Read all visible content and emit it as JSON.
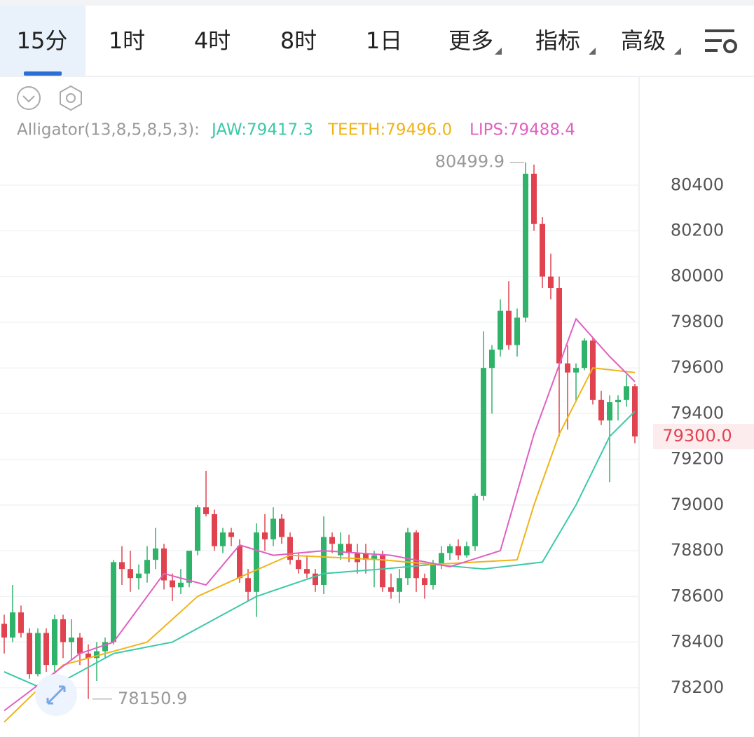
{
  "tabs": [
    "15分",
    "1时",
    "4时",
    "8时",
    "1日",
    "更多",
    "指标",
    "高级"
  ],
  "indicator": {
    "label": "Alligator(13,8,5,8,5,3):",
    "jaw": "JAW:79417.3",
    "teeth": "TEETH:79496.0",
    "lips": "LIPS:79488.4"
  },
  "chart_data": {
    "type": "candlestick",
    "up_color": "#2fb36b",
    "down_color": "#e0434f",
    "grid": true,
    "ylim": [
      78000,
      80870
    ],
    "yticks": [
      78200,
      78400,
      78600,
      78800,
      79000,
      79200,
      79400,
      79600,
      79800,
      80000,
      80200,
      80400
    ],
    "open": [
      78480,
      78420,
      78530,
      78440,
      78260,
      78440,
      78300,
      78500,
      78400,
      78420,
      78350,
      78330,
      78360,
      78400,
      78750,
      78720,
      78680,
      78700,
      78760,
      78810,
      78670,
      78640,
      78660,
      78800,
      78990,
      78960,
      78820,
      78880,
      78820,
      78680,
      78620,
      78880,
      78850,
      78940,
      78860,
      78760,
      78720,
      78700,
      78650,
      78860,
      78780,
      78830,
      78790,
      78790,
      78760,
      78780,
      78640,
      78620,
      78680,
      78880,
      78680,
      78650,
      78740,
      78790,
      78820,
      78780,
      78820,
      79040,
      79600,
      79680,
      79850,
      79700,
      79820,
      80450,
      80230,
      80000,
      79950,
      79620,
      79580,
      79600,
      79720,
      79460,
      79370,
      79450,
      79460,
      79520
    ],
    "high": [
      78520,
      78650,
      78560,
      78460,
      78460,
      78460,
      78520,
      78520,
      78500,
      78440,
      78390,
      78400,
      78420,
      78760,
      78820,
      78800,
      78740,
      78820,
      78900,
      78830,
      78700,
      78720,
      78800,
      79000,
      79150,
      78980,
      78900,
      78900,
      78850,
      78720,
      78920,
      78960,
      78990,
      78960,
      78880,
      78790,
      78780,
      78720,
      78950,
      78880,
      78880,
      78870,
      78830,
      78830,
      78800,
      78800,
      78700,
      78720,
      78900,
      78890,
      78700,
      78760,
      78820,
      78830,
      78850,
      78840,
      79050,
      79760,
      79700,
      79900,
      79980,
      79860,
      80499.9,
      80490,
      80260,
      80100,
      80000,
      79700,
      79620,
      79730,
      79730,
      79500,
      79480,
      79480,
      79570,
      79530
    ],
    "low": [
      78350,
      78400,
      78420,
      78240,
      78250,
      78270,
      78270,
      78330,
      78320,
      78300,
      78150.9,
      78230,
      78330,
      78390,
      78650,
      78620,
      78630,
      78660,
      78720,
      78630,
      78580,
      78610,
      78640,
      78780,
      78950,
      78800,
      78790,
      78820,
      78660,
      78580,
      78510,
      78800,
      78820,
      78830,
      78740,
      78700,
      78680,
      78620,
      78610,
      78790,
      78760,
      78750,
      78700,
      78700,
      78640,
      78620,
      78590,
      78570,
      78650,
      78620,
      78590,
      78630,
      78720,
      78760,
      78760,
      78770,
      78800,
      79020,
      79400,
      79650,
      79680,
      79650,
      79800,
      80200,
      79950,
      79900,
      79300,
      79330,
      79450,
      79590,
      79440,
      79350,
      79100,
      79370,
      79430,
      79270
    ],
    "close": [
      78420,
      78530,
      78440,
      78260,
      78440,
      78300,
      78500,
      78400,
      78420,
      78350,
      78330,
      78360,
      78400,
      78750,
      78720,
      78680,
      78700,
      78760,
      78810,
      78670,
      78640,
      78660,
      78800,
      78990,
      78960,
      78820,
      78880,
      78860,
      78680,
      78620,
      78880,
      78850,
      78940,
      78860,
      78760,
      78720,
      78700,
      78650,
      78860,
      78830,
      78830,
      78790,
      78750,
      78760,
      78780,
      78640,
      78620,
      78680,
      78880,
      78680,
      78650,
      78740,
      78790,
      78820,
      78780,
      78820,
      79040,
      79600,
      79680,
      79850,
      79700,
      79820,
      80450,
      80230,
      80000,
      79950,
      79620,
      79580,
      79600,
      79720,
      79460,
      79370,
      79450,
      79460,
      79520,
      79300
    ],
    "series": [
      {
        "color": "#3cc9a8",
        "x": [
          0,
          5,
          13,
          20,
          25,
          30,
          38,
          45,
          51,
          57,
          64,
          68,
          72,
          75
        ],
        "values": [
          78270,
          78190,
          78350,
          78400,
          78500,
          78600,
          78700,
          78720,
          78740,
          78720,
          78750,
          79000,
          79300,
          79410
        ]
      },
      {
        "color": "#f0b419",
        "x": [
          0,
          7,
          17,
          23,
          29,
          34,
          45,
          51,
          61,
          63,
          66,
          70,
          75
        ],
        "values": [
          78050,
          78300,
          78400,
          78600,
          78700,
          78780,
          78760,
          78740,
          78760,
          79000,
          79310,
          79600,
          79580
        ]
      },
      {
        "color": "#e060c0",
        "x": [
          0,
          9,
          13,
          19,
          24,
          28,
          32,
          38,
          46,
          53,
          59,
          63,
          68,
          72,
          75
        ],
        "values": [
          78100,
          78350,
          78400,
          78700,
          78650,
          78825,
          78780,
          78800,
          78780,
          78730,
          78800,
          79310,
          79815,
          79650,
          79540
        ]
      }
    ],
    "last_price": {
      "value": 79300,
      "label": "79300.0"
    },
    "high_marker": 80499.9,
    "low_marker": 78150.9
  }
}
